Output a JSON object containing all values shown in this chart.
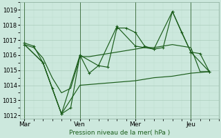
{
  "background_color": "#cce8dd",
  "grid_color_major": "#aaccbb",
  "grid_color_minor": "#bbddcc",
  "line_color": "#1a5c1a",
  "vline_color": "#336633",
  "title": "Pression niveau de la mer( hPa )",
  "ylim": [
    1011.8,
    1019.5
  ],
  "yticks": [
    1012,
    1013,
    1014,
    1015,
    1016,
    1017,
    1018,
    1019
  ],
  "day_labels": [
    "Mar",
    "Ven",
    "Mer",
    "Jeu"
  ],
  "day_positions": [
    0,
    36,
    72,
    108
  ],
  "xlim": [
    -3,
    126
  ],
  "series1_x": [
    0,
    6,
    12,
    18,
    24,
    30,
    36,
    42,
    48,
    54,
    60,
    66,
    72,
    78,
    84,
    90,
    96,
    102,
    108,
    114,
    120
  ],
  "series1_y": [
    1016.8,
    1016.6,
    1015.5,
    1013.8,
    1012.1,
    1012.5,
    1016.0,
    1014.8,
    1015.3,
    1015.2,
    1017.8,
    1017.8,
    1017.5,
    1016.6,
    1016.4,
    1016.5,
    1018.9,
    1017.5,
    1016.2,
    1016.1,
    1014.9
  ],
  "series2_x": [
    0,
    6,
    12,
    18,
    24,
    30,
    36,
    42,
    48,
    54,
    60,
    66,
    72,
    78,
    84,
    90,
    96,
    102,
    108,
    114,
    120
  ],
  "series2_y": [
    1016.7,
    1016.5,
    1015.8,
    1014.5,
    1013.5,
    1013.8,
    1015.9,
    1015.9,
    1016.0,
    1016.1,
    1016.2,
    1016.3,
    1016.4,
    1016.5,
    1016.5,
    1016.6,
    1016.7,
    1016.6,
    1016.5,
    1014.9,
    1014.9
  ],
  "series3_x": [
    0,
    12,
    24,
    36,
    48,
    60,
    72,
    84,
    96,
    108,
    120
  ],
  "series3_y": [
    1016.7,
    1015.5,
    1012.1,
    1016.0,
    1015.3,
    1017.9,
    1016.6,
    1016.4,
    1018.9,
    1016.2,
    1014.9
  ],
  "series4_x": [
    0,
    12,
    24,
    36,
    48,
    60,
    72,
    84,
    96,
    108,
    120
  ],
  "series4_y": [
    1016.7,
    1015.5,
    1012.1,
    1014.0,
    1014.1,
    1014.2,
    1014.3,
    1014.5,
    1014.6,
    1014.8,
    1014.9
  ]
}
